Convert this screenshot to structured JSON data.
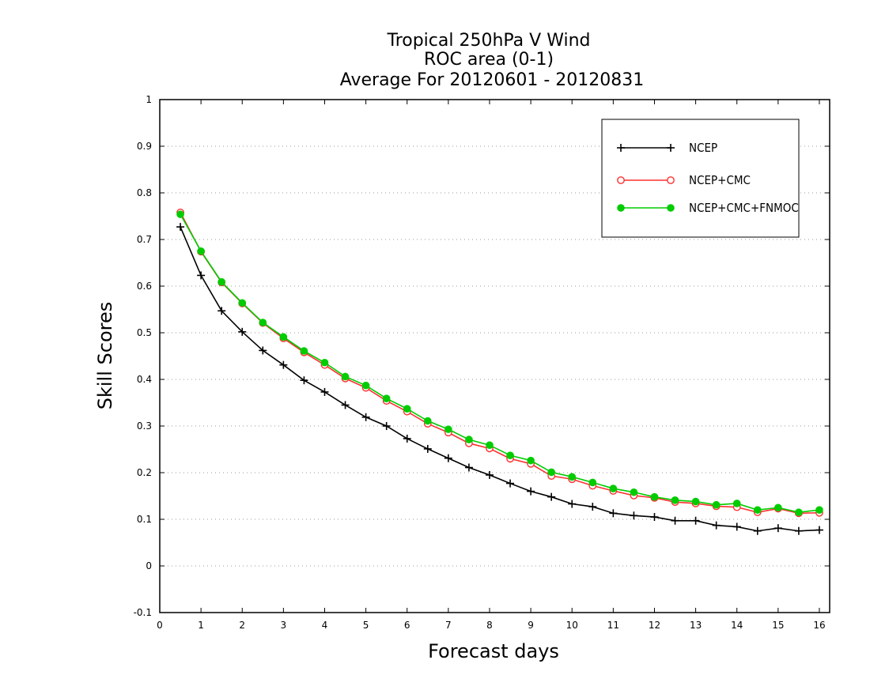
{
  "chart_data": {
    "type": "line",
    "title_lines": [
      "Tropical 250hPa V Wind",
      "ROC area (0-1)",
      "Average For 20120601 - 20120831"
    ],
    "xlabel": "Forecast days",
    "ylabel": "Skill Scores",
    "xlim": [
      0,
      16.25
    ],
    "ylim": [
      -0.1,
      1
    ],
    "x_ticks": [
      0,
      1,
      2,
      3,
      4,
      5,
      6,
      7,
      8,
      9,
      10,
      11,
      12,
      13,
      14,
      15,
      16
    ],
    "y_ticks": [
      -0.1,
      0,
      0.1,
      0.2,
      0.3,
      0.4,
      0.5,
      0.6,
      0.7,
      0.8,
      0.9,
      1
    ],
    "y_tick_labels": [
      "-0.1",
      "0",
      "0.1",
      "0.2",
      "0.3",
      "0.4",
      "0.5",
      "0.6",
      "0.7",
      "0.8",
      "0.9",
      "1"
    ],
    "grid": "horizontal dotted",
    "legend_position": "top-right",
    "x": [
      0.5,
      1,
      1.5,
      2,
      2.5,
      3,
      3.5,
      4,
      4.5,
      5,
      5.5,
      6,
      6.5,
      7,
      7.5,
      8,
      8.5,
      9,
      9.5,
      10,
      10.5,
      11,
      11.5,
      12,
      12.5,
      13,
      13.5,
      14,
      14.5,
      15,
      15.5,
      16
    ],
    "series": [
      {
        "name": "NCEP",
        "color": "#000000",
        "marker": "plus",
        "values": [
          0.727,
          0.623,
          0.547,
          0.502,
          0.462,
          0.431,
          0.398,
          0.373,
          0.345,
          0.319,
          0.3,
          0.273,
          0.251,
          0.231,
          0.211,
          0.195,
          0.177,
          0.16,
          0.148,
          0.133,
          0.127,
          0.113,
          0.108,
          0.105,
          0.097,
          0.097,
          0.087,
          0.084,
          0.075,
          0.081,
          0.075,
          0.077
        ]
      },
      {
        "name": "NCEP+CMC",
        "color": "#ff3030",
        "marker": "open-circle",
        "values": [
          0.758,
          0.674,
          0.608,
          0.563,
          0.521,
          0.488,
          0.458,
          0.431,
          0.402,
          0.382,
          0.354,
          0.331,
          0.305,
          0.286,
          0.263,
          0.252,
          0.23,
          0.219,
          0.193,
          0.186,
          0.172,
          0.161,
          0.151,
          0.146,
          0.137,
          0.134,
          0.128,
          0.126,
          0.115,
          0.123,
          0.113,
          0.114
        ]
      },
      {
        "name": "NCEP+CMC+FNMOC",
        "color": "#00cc00",
        "marker": "filled-circle",
        "values": [
          0.754,
          0.675,
          0.609,
          0.564,
          0.522,
          0.491,
          0.461,
          0.436,
          0.406,
          0.387,
          0.359,
          0.337,
          0.311,
          0.293,
          0.271,
          0.259,
          0.237,
          0.226,
          0.201,
          0.191,
          0.179,
          0.166,
          0.158,
          0.148,
          0.141,
          0.138,
          0.131,
          0.134,
          0.12,
          0.125,
          0.115,
          0.12
        ]
      }
    ]
  }
}
